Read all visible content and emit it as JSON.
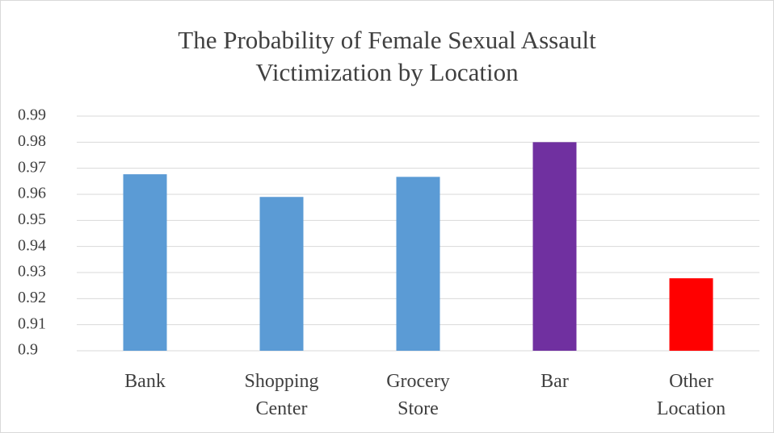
{
  "chart_data": {
    "type": "bar",
    "title": "The Probability of Female Sexual Assault Victimization by Location",
    "categories": [
      "Bank",
      "Shopping Center",
      "Grocery Store",
      "Bar",
      "Other Location"
    ],
    "values": [
      0.9677,
      0.959,
      0.9667,
      0.98,
      0.9278
    ],
    "colors": [
      "#5b9bd5",
      "#5b9bd5",
      "#5b9bd5",
      "#7030a0",
      "#ff0000"
    ],
    "ylim": [
      0.9,
      0.99
    ],
    "yticks": [
      0.9,
      0.91,
      0.92,
      0.93,
      0.94,
      0.95,
      0.96,
      0.97,
      0.98,
      0.99
    ],
    "grid": true
  }
}
